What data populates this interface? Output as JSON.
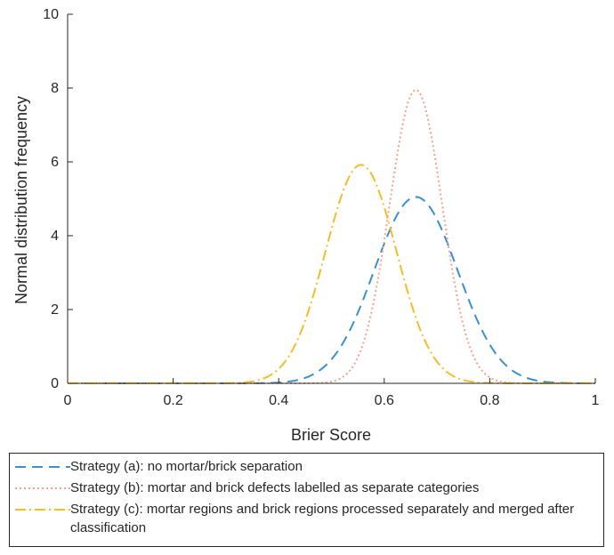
{
  "chart_data": {
    "type": "line",
    "title": "",
    "xlabel": "Brier Score",
    "ylabel": "Normal distribution frequency",
    "xlim": [
      0,
      1
    ],
    "ylim": [
      0,
      10
    ],
    "xticks": [
      "0",
      "0.2",
      "0.4",
      "0.6",
      "0.8",
      "1"
    ],
    "yticks": [
      "0",
      "2",
      "4",
      "6",
      "8",
      "10"
    ],
    "grid": false,
    "legend_position": "below",
    "series": [
      {
        "name": "Strategy (a): no mortar/brick separation",
        "distribution": "normal",
        "mean": 0.66,
        "peak": 5.05,
        "color": "#3a8fd0",
        "dash": "dashed"
      },
      {
        "name": "Strategy (b): mortar and brick defects labelled as separate categories",
        "distribution": "normal",
        "mean": 0.66,
        "peak": 7.95,
        "color": "#f2a38a",
        "dash": "dotted"
      },
      {
        "name": "Strategy (c): mortar regions and brick regions processed separately and merged after classification",
        "distribution": "normal",
        "mean": 0.556,
        "peak": 5.92,
        "color": "#f2bd2b",
        "dash": "dashdot"
      }
    ]
  }
}
